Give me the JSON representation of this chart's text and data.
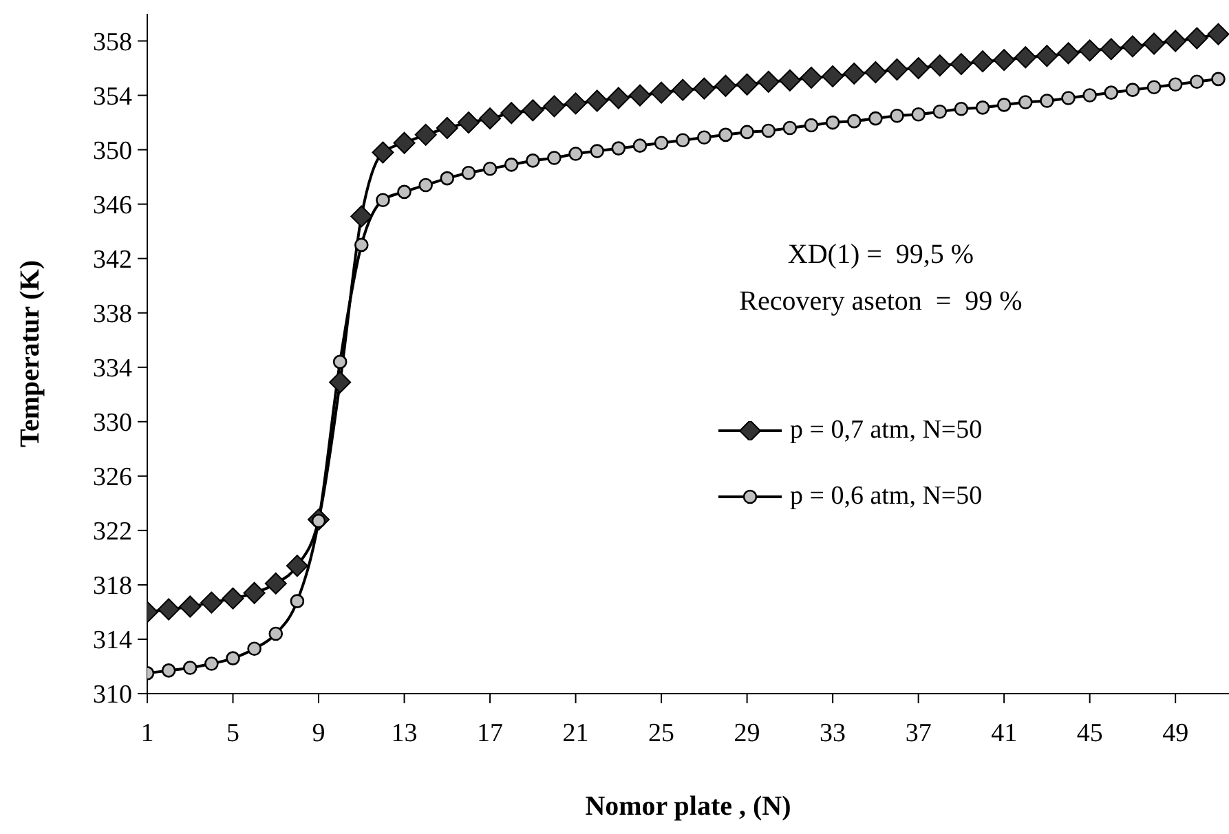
{
  "chart_data": {
    "type": "line",
    "xlabel": "Nomor plate , (N)",
    "ylabel": "Temperatur (K)",
    "x": [
      1,
      2,
      3,
      4,
      5,
      6,
      7,
      8,
      9,
      10,
      11,
      12,
      13,
      14,
      15,
      16,
      17,
      18,
      19,
      20,
      21,
      22,
      23,
      24,
      25,
      26,
      27,
      28,
      29,
      30,
      31,
      32,
      33,
      34,
      35,
      36,
      37,
      38,
      39,
      40,
      41,
      42,
      43,
      44,
      45,
      46,
      47,
      48,
      49,
      50,
      51
    ],
    "xlim": [
      1,
      51.5
    ],
    "xticks": [
      1,
      5,
      9,
      13,
      17,
      21,
      25,
      29,
      33,
      37,
      41,
      45,
      49
    ],
    "ylim": [
      310,
      360
    ],
    "yticks": [
      310,
      314,
      318,
      322,
      326,
      330,
      334,
      338,
      342,
      346,
      350,
      354,
      358
    ],
    "series": [
      {
        "name": "p = 0,7 atm, N=50",
        "color": "#333333",
        "marker": "diamond",
        "values": [
          316.0,
          316.2,
          316.4,
          316.7,
          317.0,
          317.4,
          318.1,
          319.4,
          322.8,
          332.9,
          345.1,
          349.8,
          350.5,
          351.1,
          351.6,
          352.0,
          352.3,
          352.7,
          352.9,
          353.2,
          353.4,
          353.6,
          353.8,
          354.0,
          354.2,
          354.4,
          354.5,
          354.7,
          354.8,
          355.0,
          355.1,
          355.3,
          355.4,
          355.6,
          355.7,
          355.9,
          356.0,
          356.2,
          356.3,
          356.5,
          356.6,
          356.8,
          356.9,
          357.1,
          357.3,
          357.4,
          357.6,
          357.8,
          358.0,
          358.2,
          358.5
        ]
      },
      {
        "name": "p = 0,6 atm, N=50",
        "color": "#c0c0c0",
        "marker": "circle",
        "values": [
          311.5,
          311.7,
          311.9,
          312.2,
          312.6,
          313.3,
          314.4,
          316.8,
          322.7,
          334.4,
          343.0,
          346.3,
          346.9,
          347.4,
          347.9,
          348.3,
          348.6,
          348.9,
          349.2,
          349.4,
          349.7,
          349.9,
          350.1,
          350.3,
          350.5,
          350.7,
          350.9,
          351.1,
          351.3,
          351.4,
          351.6,
          351.8,
          352.0,
          352.1,
          352.3,
          352.5,
          352.6,
          352.8,
          353.0,
          353.1,
          353.3,
          353.5,
          353.6,
          353.8,
          354.0,
          354.2,
          354.4,
          354.6,
          354.8,
          355.0,
          355.2
        ]
      }
    ],
    "annotations": [
      "XD(1) =  99,5 %",
      "Recovery aseton  =  99 %"
    ],
    "legend": "right",
    "grid": false,
    "line_style": "solid"
  }
}
